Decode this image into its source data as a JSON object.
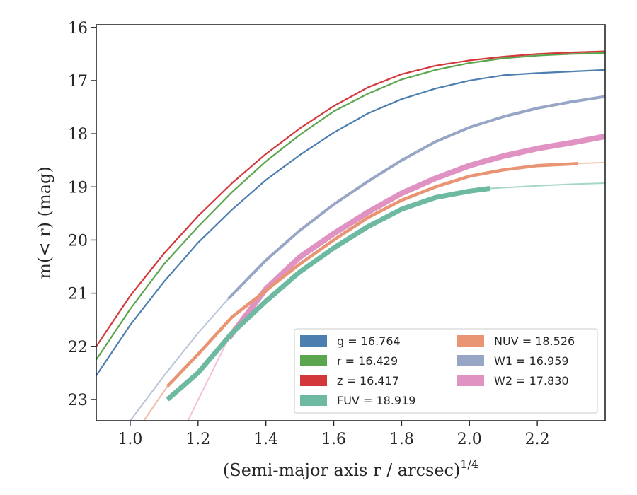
{
  "chart_data": {
    "type": "line",
    "xlabel": "(Semi-major axis r / arcsec)",
    "xlabel_sup": "1/4",
    "ylabel": "m(< r) (mag)",
    "xlim": [
      0.9,
      2.4
    ],
    "ylim": [
      23.4,
      15.95
    ],
    "y_inverted": true,
    "xticks": [
      "1.0",
      "1.2",
      "1.4",
      "1.6",
      "1.8",
      "2.0",
      "2.2"
    ],
    "yticks": [
      "16",
      "17",
      "18",
      "19",
      "20",
      "21",
      "22",
      "23"
    ],
    "grid": false,
    "legend_position": "lower-right",
    "legend_columns": 2,
    "series": [
      {
        "name": "g = 16.764",
        "color": "#4c7fb0",
        "width": 2.2,
        "x": [
          0.9,
          1.0,
          1.1,
          1.2,
          1.3,
          1.4,
          1.5,
          1.6,
          1.7,
          1.8,
          1.9,
          2.0,
          2.1,
          2.2,
          2.3,
          2.4
        ],
        "y": [
          22.55,
          21.6,
          20.78,
          20.05,
          19.43,
          18.87,
          18.4,
          17.98,
          17.62,
          17.35,
          17.15,
          17.0,
          16.9,
          16.86,
          16.83,
          16.8
        ]
      },
      {
        "name": "r = 16.429",
        "color": "#5aa54e",
        "width": 2.2,
        "x": [
          0.9,
          1.0,
          1.1,
          1.2,
          1.3,
          1.4,
          1.5,
          1.6,
          1.7,
          1.8,
          1.9,
          2.0,
          2.1,
          2.2,
          2.3,
          2.4
        ],
        "y": [
          22.25,
          21.3,
          20.45,
          19.75,
          19.1,
          18.52,
          18.02,
          17.58,
          17.25,
          16.98,
          16.8,
          16.67,
          16.58,
          16.53,
          16.5,
          16.48
        ]
      },
      {
        "name": "z = 16.417",
        "color": "#d2373a",
        "width": 2.2,
        "x": [
          0.9,
          1.0,
          1.1,
          1.2,
          1.3,
          1.4,
          1.5,
          1.6,
          1.7,
          1.8,
          1.9,
          2.0,
          2.1,
          2.2,
          2.3,
          2.4
        ],
        "y": [
          22.0,
          21.05,
          20.25,
          19.55,
          18.93,
          18.38,
          17.9,
          17.48,
          17.13,
          16.88,
          16.72,
          16.62,
          16.55,
          16.5,
          16.47,
          16.45
        ]
      },
      {
        "name": "FUV = 18.919",
        "color": "#6db9a2",
        "width": 7,
        "x": [
          1.11,
          1.2,
          1.3,
          1.4,
          1.5,
          1.6,
          1.7,
          1.8,
          1.9,
          2.0,
          2.06
        ],
        "y": [
          23.0,
          22.5,
          21.75,
          21.15,
          20.6,
          20.15,
          19.75,
          19.42,
          19.2,
          19.08,
          19.03
        ]
      },
      {
        "name": "NUV = 18.526",
        "color": "#e99473",
        "width": 4.5,
        "x": [
          1.11,
          1.2,
          1.3,
          1.4,
          1.5,
          1.6,
          1.7,
          1.8,
          1.9,
          2.0,
          2.1,
          2.2,
          2.3,
          2.32
        ],
        "y": [
          22.75,
          22.15,
          21.45,
          20.95,
          20.45,
          20.0,
          19.58,
          19.25,
          19.0,
          18.8,
          18.68,
          18.6,
          18.57,
          18.56
        ]
      },
      {
        "name": "W1 = 16.959",
        "color": "#98a6c6",
        "width": 4,
        "x": [
          1.29,
          1.4,
          1.5,
          1.6,
          1.7,
          1.8,
          1.9,
          2.0,
          2.1,
          2.2,
          2.3,
          2.4
        ],
        "y": [
          21.1,
          20.38,
          19.82,
          19.33,
          18.9,
          18.5,
          18.15,
          17.88,
          17.68,
          17.52,
          17.4,
          17.3
        ]
      },
      {
        "name": "W2 = 17.830",
        "color": "#e093c3",
        "width": 8,
        "x": [
          1.29,
          1.4,
          1.5,
          1.6,
          1.7,
          1.8,
          1.9,
          2.0,
          2.1,
          2.2,
          2.3,
          2.4
        ],
        "y": [
          21.85,
          20.92,
          20.32,
          19.88,
          19.48,
          19.12,
          18.84,
          18.6,
          18.42,
          18.28,
          18.17,
          18.05
        ]
      }
    ],
    "faint_extensions": [
      {
        "color": "#b8c2d8",
        "width": 2,
        "x": [
          1.0,
          1.1,
          1.2,
          1.29
        ],
        "y": [
          23.4,
          22.55,
          21.75,
          21.1
        ]
      },
      {
        "color": "#f2b9a8",
        "width": 2,
        "x": [
          1.04,
          1.11
        ],
        "y": [
          23.4,
          22.75
        ]
      },
      {
        "color": "#f2bfdd",
        "width": 2,
        "x": [
          1.17,
          1.29
        ],
        "y": [
          23.4,
          21.85
        ]
      },
      {
        "color": "#a3d6c6",
        "width": 2,
        "x": [
          2.06,
          2.2,
          2.3,
          2.4
        ],
        "y": [
          19.03,
          18.98,
          18.95,
          18.93
        ]
      },
      {
        "color": "#f5c9b9",
        "width": 2,
        "x": [
          2.32,
          2.4
        ],
        "y": [
          18.56,
          18.54
        ]
      },
      {
        "color": "#f2b09f",
        "width": 2,
        "x": [
          2.32,
          2.4
        ],
        "y": [
          16.5,
          16.49
        ]
      }
    ],
    "legend": [
      {
        "label": "g = 16.764",
        "color": "#4c7fb0"
      },
      {
        "label": "r = 16.429",
        "color": "#5aa54e"
      },
      {
        "label": "z = 16.417",
        "color": "#d2373a"
      },
      {
        "label": "FUV = 18.919",
        "color": "#6db9a2"
      },
      {
        "label": "NUV = 18.526",
        "color": "#e99473"
      },
      {
        "label": "W1 = 16.959",
        "color": "#98a6c6"
      },
      {
        "label": "W2 = 17.830",
        "color": "#e093c3"
      }
    ]
  }
}
